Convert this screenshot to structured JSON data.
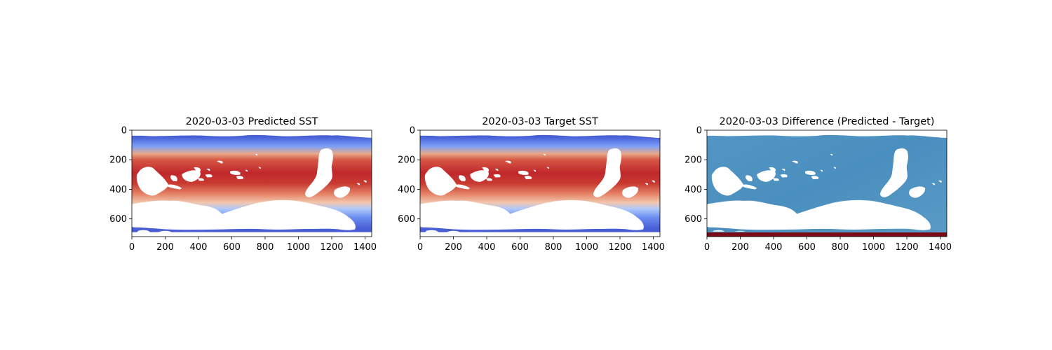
{
  "chart_data": [
    {
      "type": "heatmap",
      "title": "2020-03-03 Predicted SST",
      "xlim": [
        0,
        1440
      ],
      "ylim": [
        720,
        0
      ],
      "xticks": [
        0,
        200,
        400,
        600,
        800,
        1000,
        1200,
        1400
      ],
      "yticks": [
        0,
        200,
        400,
        600
      ],
      "colormap": "coolwarm",
      "field": "sst",
      "xlabel": "",
      "ylabel": ""
    },
    {
      "type": "heatmap",
      "title": "2020-03-03 Target SST",
      "xlim": [
        0,
        1440
      ],
      "ylim": [
        720,
        0
      ],
      "xticks": [
        0,
        200,
        400,
        600,
        800,
        1000,
        1200,
        1400
      ],
      "yticks": [
        0,
        200,
        400,
        600
      ],
      "colormap": "coolwarm",
      "field": "sst",
      "xlabel": "",
      "ylabel": ""
    },
    {
      "type": "heatmap",
      "title": "2020-03-03 Difference (Predicted - Target)",
      "xlim": [
        0,
        1440
      ],
      "ylim": [
        720,
        0
      ],
      "xticks": [
        0,
        200,
        400,
        600,
        800,
        1000,
        1200,
        1400
      ],
      "yticks": [
        0,
        200,
        400,
        600
      ],
      "colormap": "RdBu_r",
      "field": "difference",
      "xlabel": "",
      "ylabel": ""
    }
  ],
  "colors": {
    "warm": "#c0392b",
    "cool": "#4a5fd6",
    "diff": "#4f93c1",
    "diff_edge": "#7a0a14",
    "land": "#ffffff"
  }
}
